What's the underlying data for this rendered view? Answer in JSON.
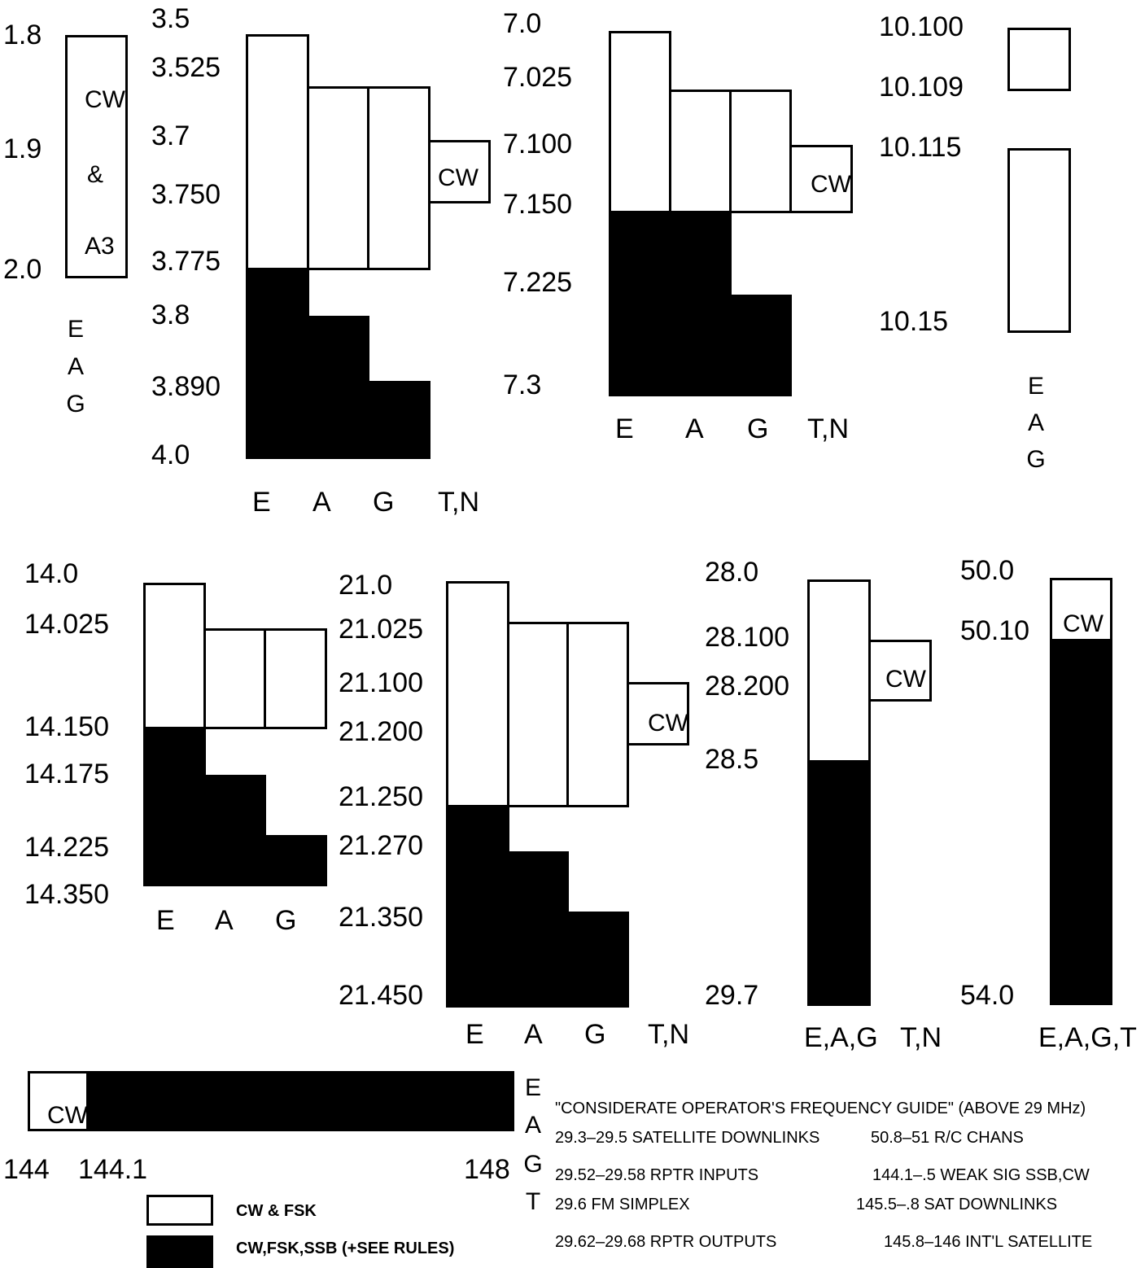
{
  "band160": {
    "freqs": [
      "1.8",
      "1.9",
      "2.0"
    ],
    "box_lines": [
      "CW",
      "&",
      "A3"
    ],
    "classes": [
      "E",
      "A",
      "G"
    ]
  },
  "band80": {
    "freqs": [
      "3.5",
      "3.525",
      "3.7",
      "3.750",
      "3.775",
      "3.8",
      "3.890",
      "4.0"
    ],
    "cw": "CW",
    "classes": [
      "E",
      "A",
      "G",
      "T,N"
    ]
  },
  "band40": {
    "freqs": [
      "7.0",
      "7.025",
      "7.100",
      "7.150",
      "7.225",
      "7.3"
    ],
    "cw": "CW",
    "classes": [
      "E",
      "A",
      "G",
      "T,N"
    ]
  },
  "band30": {
    "freqs": [
      "10.100",
      "10.109",
      "10.115",
      "10.15"
    ],
    "classes": [
      "E",
      "A",
      "G"
    ]
  },
  "band20": {
    "freqs": [
      "14.0",
      "14.025",
      "14.150",
      "14.175",
      "14.225",
      "14.350"
    ],
    "classes": [
      "E",
      "A",
      "G"
    ]
  },
  "band15": {
    "freqs": [
      "21.0",
      "21.025",
      "21.100",
      "21.200",
      "21.250",
      "21.270",
      "21.350",
      "21.450"
    ],
    "cw": "CW",
    "classes": [
      "E",
      "A",
      "G",
      "T,N"
    ]
  },
  "band10": {
    "freqs": [
      "28.0",
      "28.100",
      "28.200",
      "28.5",
      "29.7"
    ],
    "cw": "CW",
    "classes": [
      "E,A,G",
      "T,N"
    ]
  },
  "band6": {
    "freqs": [
      "50.0",
      "50.10",
      "54.0"
    ],
    "cw": "CW",
    "classes": [
      "E,A,G,T"
    ]
  },
  "band2": {
    "freqs": [
      "144",
      "144.1",
      "148"
    ],
    "cw": "CW",
    "classes": [
      "E",
      "A",
      "G",
      "T"
    ]
  },
  "legend": {
    "white": "CW & FSK",
    "black": "CW,FSK,SSB (+SEE RULES)"
  },
  "guide": {
    "title": "\"CONSIDERATE OPERATOR'S FREQUENCY GUIDE\" (ABOVE 29 MHz)",
    "left": [
      "29.3–29.5 SATELLITE DOWNLINKS",
      "29.52–29.58 RPTR INPUTS",
      "29.6 FM SIMPLEX",
      "29.62–29.68 RPTR OUTPUTS"
    ],
    "right": [
      "50.8–51 R/C CHANS",
      "144.1–.5 WEAK SIG SSB,CW",
      "145.5–.8 SAT DOWNLINKS",
      "145.8–146 INT'L SATELLITE"
    ]
  },
  "colors": {
    "allocation_fill": "#000000",
    "background": "#ffffff"
  }
}
